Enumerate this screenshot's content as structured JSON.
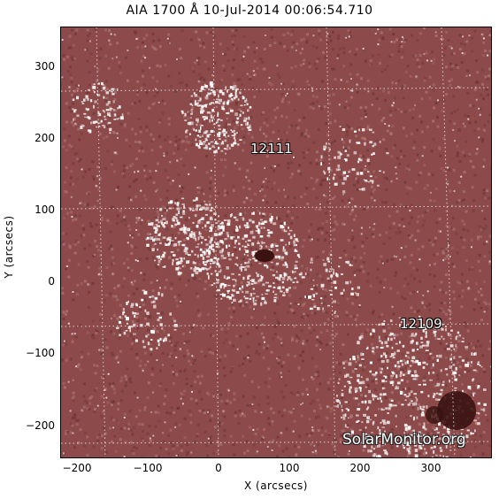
{
  "title": "AIA 1700 Å 10-Jul-2014 00:06:54.710",
  "image": {
    "description_kind": "solar-photosphere-uv-map",
    "base_color": "#8c4a4a",
    "plage_color": "#ffffff",
    "sunspot_color": "#3a1212"
  },
  "axes": {
    "xlabel": "X (arcsecs)",
    "ylabel": "Y (arcsecs)",
    "xlim": [
      -225,
      385
    ],
    "ylim": [
      -245,
      365
    ],
    "x_ticks": [
      "−200",
      "−100",
      "0",
      "100",
      "200",
      "300"
    ],
    "y_ticks": [
      "300",
      "200",
      "100",
      "0",
      "−100",
      "−200"
    ]
  },
  "active_regions": [
    {
      "label": "12111"
    },
    {
      "label": "12109"
    }
  ],
  "watermark": "SolarMonitor.org"
}
